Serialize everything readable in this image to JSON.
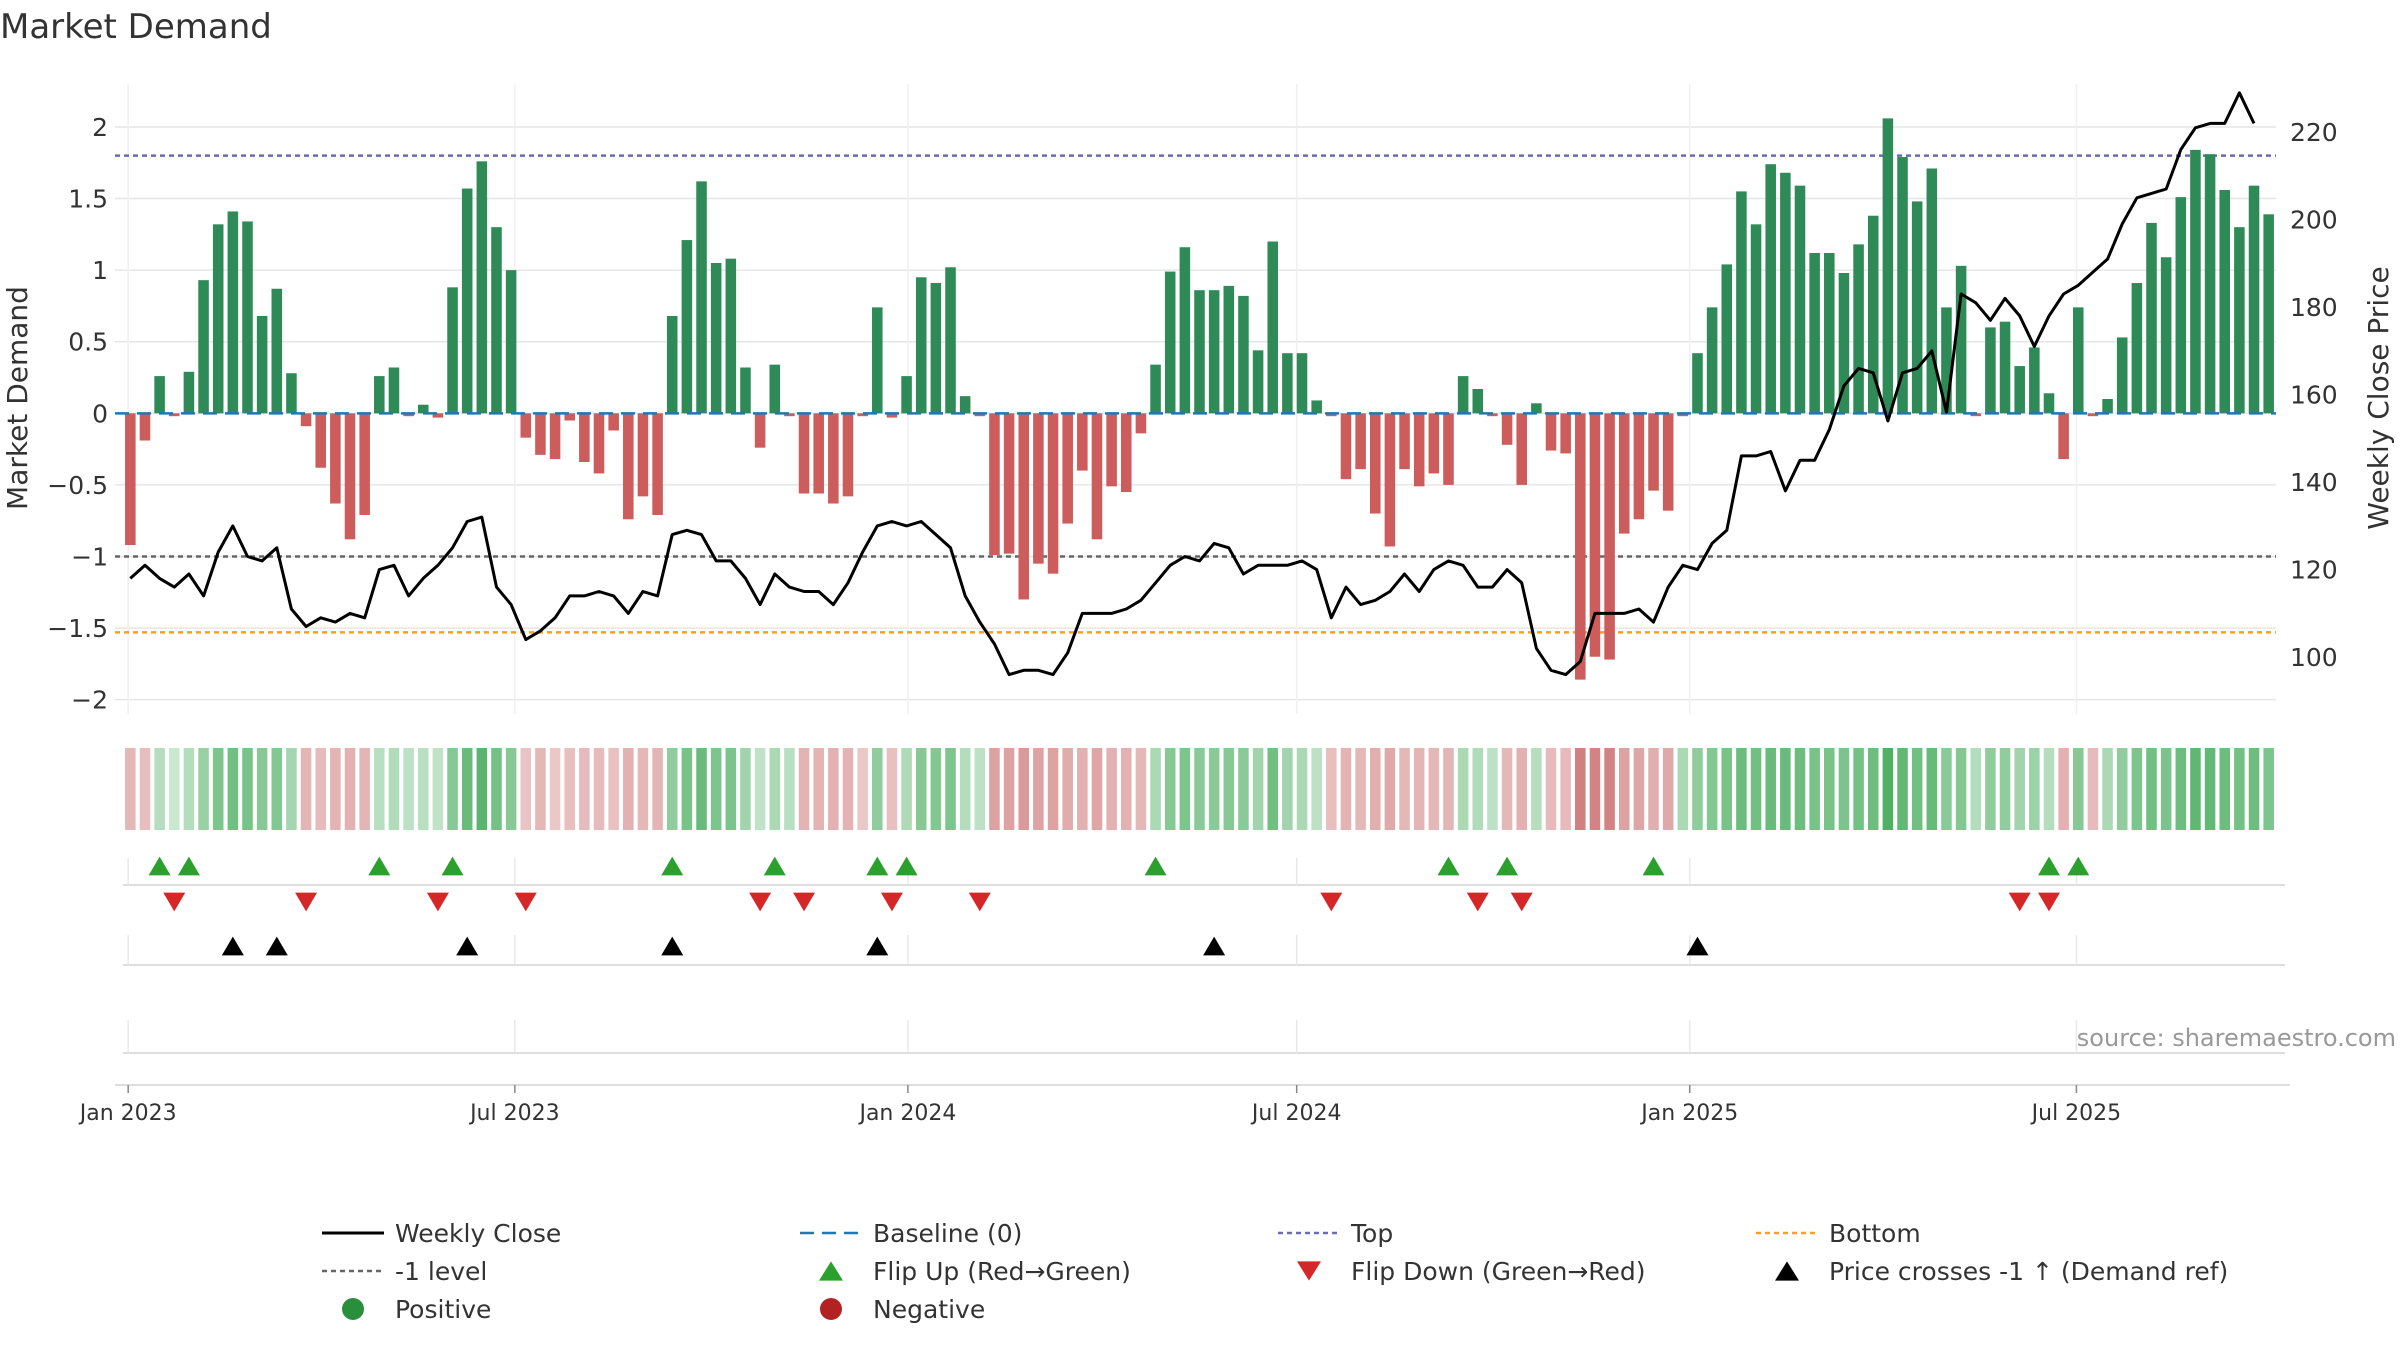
{
  "chart_data": {
    "type": "bar",
    "title": "Market Demand",
    "ylabel": "Market Demand",
    "y2label": "Weekly Close Price",
    "ylim": [
      -2.1,
      2.3
    ],
    "y2lim": [
      87,
      231
    ],
    "yticks": [
      -2,
      -1.5,
      -1,
      -0.5,
      0,
      0.5,
      1,
      1.5,
      2
    ],
    "ytick_labels": [
      "−2",
      "−1.5",
      "−1",
      "−0.5",
      "0",
      "0.5",
      "1",
      "1.5",
      "2"
    ],
    "y2ticks": [
      100,
      120,
      140,
      160,
      180,
      200,
      220
    ],
    "x_date_start": "2023-01-02",
    "x_date_end": "2025-09-29",
    "xticks": [
      {
        "label": "Jan 2023",
        "date": "2023-01-01"
      },
      {
        "label": "Jul 2023",
        "date": "2023-07-01"
      },
      {
        "label": "Jan 2024",
        "date": "2024-01-01"
      },
      {
        "label": "Jul 2024",
        "date": "2024-07-01"
      },
      {
        "label": "Jan 2025",
        "date": "2025-01-01"
      },
      {
        "label": "Jul 2025",
        "date": "2025-07-01"
      }
    ],
    "reference_lines": {
      "top": 1.8,
      "bottom": -1.53,
      "minus_one": -1,
      "baseline": 0
    },
    "colors": {
      "pos_bar": "#2e8b57",
      "neg_bar": "#cd5c5c",
      "price": "#000000",
      "baseline": "#1f77b4",
      "top": "#6b6bb0",
      "bottom": "#ff9f1c",
      "minus_one": "#666666",
      "flip_up": "#2ca02c",
      "flip_down": "#d62728",
      "cross": "#000000",
      "grid": "#e6e6e6"
    },
    "demand": [
      -0.92,
      -0.19,
      0.26,
      -0.02,
      0.29,
      0.93,
      1.32,
      1.41,
      1.34,
      0.68,
      0.87,
      0.28,
      -0.09,
      -0.38,
      -0.63,
      -0.88,
      -0.71,
      0.26,
      0.32,
      -0.02,
      0.06,
      -0.03,
      0.88,
      1.57,
      1.76,
      1.3,
      1.0,
      -0.17,
      -0.29,
      -0.32,
      -0.05,
      -0.34,
      -0.42,
      -0.12,
      -0.74,
      -0.58,
      -0.71,
      0.68,
      1.21,
      1.62,
      1.05,
      1.08,
      0.32,
      -0.24,
      0.34,
      -0.02,
      -0.56,
      -0.56,
      -0.63,
      -0.58,
      -0.02,
      0.74,
      -0.03,
      0.26,
      0.95,
      0.91,
      1.02,
      0.12,
      -0.02,
      -0.99,
      -0.98,
      -1.3,
      -1.05,
      -1.12,
      -0.77,
      -0.4,
      -0.88,
      -0.51,
      -0.55,
      -0.14,
      0.34,
      0.99,
      1.16,
      0.86,
      0.86,
      0.89,
      0.82,
      0.44,
      1.2,
      0.42,
      0.42,
      0.09,
      -0.02,
      -0.46,
      -0.39,
      -0.7,
      -0.93,
      -0.39,
      -0.51,
      -0.42,
      -0.5,
      0.26,
      0.17,
      -0.02,
      -0.22,
      -0.5,
      0.07,
      -0.26,
      -0.28,
      -1.86,
      -1.7,
      -1.72,
      -0.84,
      -0.74,
      -0.54,
      -0.68,
      -0.02,
      0.42,
      0.74,
      1.04,
      1.55,
      1.32,
      1.74,
      1.68,
      1.59,
      1.12,
      1.12,
      0.98,
      1.18,
      1.38,
      2.06,
      1.79,
      1.48,
      1.71,
      0.74,
      1.03,
      -0.02,
      0.6,
      0.64,
      0.33,
      0.46,
      0.14,
      -0.32,
      0.74,
      -0.02,
      0.1,
      0.53,
      0.91,
      1.33,
      1.09,
      1.51,
      1.84,
      1.81,
      1.56,
      1.3,
      1.59,
      1.39
    ],
    "price": [
      118,
      121,
      118,
      116,
      119,
      114,
      124,
      130,
      123,
      122,
      125,
      111,
      107,
      109,
      108,
      110,
      109,
      120,
      121,
      114,
      118,
      121,
      125,
      131,
      132,
      116,
      112,
      104,
      106,
      109,
      114,
      114,
      115,
      114,
      110,
      115,
      114,
      128,
      129,
      128,
      122,
      122,
      118,
      112,
      119,
      116,
      115,
      115,
      112,
      117,
      124,
      130,
      131,
      130,
      131,
      128,
      125,
      114,
      108,
      103,
      96,
      97,
      97,
      96,
      101,
      110,
      110,
      110,
      111,
      113,
      117,
      121,
      123,
      122,
      126,
      125,
      119,
      121,
      121,
      121,
      122,
      120,
      109,
      116,
      112,
      113,
      115,
      119,
      115,
      120,
      122,
      121,
      116,
      116,
      120,
      117,
      102,
      97,
      96,
      99,
      110,
      110,
      110,
      111,
      108,
      116,
      121,
      120,
      126,
      129,
      146,
      146,
      147,
      138,
      145,
      145,
      152,
      162,
      166,
      165,
      154,
      165,
      166,
      170,
      156,
      183,
      181,
      177,
      182,
      178,
      171,
      178,
      183,
      185,
      188,
      191,
      199,
      205,
      206,
      207,
      216,
      221,
      222,
      222,
      229,
      222
    ],
    "heat_strip": [
      -0.3,
      -0.27,
      0.24,
      0.12,
      0.25,
      0.4,
      0.55,
      0.62,
      0.58,
      0.5,
      0.52,
      0.33,
      -0.32,
      -0.28,
      -0.33,
      -0.35,
      -0.32,
      0.22,
      0.26,
      0.2,
      0.22,
      0.18,
      0.5,
      0.66,
      0.74,
      0.6,
      0.5,
      -0.22,
      -0.3,
      -0.2,
      -0.26,
      -0.28,
      -0.28,
      -0.24,
      -0.35,
      -0.3,
      -0.32,
      0.45,
      0.58,
      0.66,
      0.55,
      0.56,
      0.35,
      0.18,
      0.3,
      0.22,
      -0.33,
      -0.33,
      -0.35,
      -0.33,
      -0.2,
      0.45,
      -0.25,
      0.28,
      0.5,
      0.52,
      0.55,
      0.25,
      0.2,
      -0.45,
      -0.45,
      -0.5,
      -0.45,
      -0.45,
      -0.38,
      -0.35,
      -0.42,
      -0.35,
      -0.35,
      -0.3,
      0.3,
      0.5,
      0.55,
      0.48,
      0.48,
      0.5,
      0.48,
      0.35,
      0.62,
      0.35,
      0.3,
      0.2,
      -0.26,
      -0.33,
      -0.3,
      -0.36,
      -0.4,
      -0.3,
      -0.32,
      -0.3,
      -0.32,
      0.3,
      0.26,
      0.2,
      -0.3,
      -0.35,
      0.24,
      -0.28,
      -0.28,
      -0.68,
      -0.66,
      -0.66,
      -0.45,
      -0.42,
      -0.36,
      -0.4,
      0.3,
      0.45,
      0.52,
      0.58,
      0.65,
      0.62,
      0.66,
      0.66,
      0.64,
      0.58,
      0.58,
      0.56,
      0.6,
      0.64,
      0.8,
      0.7,
      0.62,
      0.68,
      0.48,
      0.52,
      0.25,
      0.45,
      0.45,
      0.35,
      0.38,
      0.25,
      -0.35,
      0.5,
      -0.28,
      0.3,
      0.45,
      0.55,
      0.62,
      0.56,
      0.64,
      0.72,
      0.7,
      0.64,
      0.6,
      0.64,
      0.55
    ],
    "flip_up_weeks": [
      2,
      4,
      17,
      22,
      37,
      44,
      51,
      53,
      70,
      90,
      94,
      104,
      131,
      133
    ],
    "flip_down_weeks": [
      3,
      12,
      21,
      27,
      43,
      46,
      52,
      58,
      82,
      92,
      95,
      129,
      131
    ],
    "cross_weeks": [
      7,
      10,
      23,
      37,
      51,
      74,
      107
    ],
    "legend": [
      {
        "label": "Weekly Close",
        "kind": "line"
      },
      {
        "label": "Baseline (0)",
        "kind": "baseline"
      },
      {
        "label": "Top",
        "kind": "top"
      },
      {
        "label": "Bottom",
        "kind": "bottom"
      },
      {
        "label": "-1 level",
        "kind": "minus_one"
      },
      {
        "label": "Flip Up (Red→Green)",
        "kind": "flip_up"
      },
      {
        "label": "Flip Down (Green→Red)",
        "kind": "flip_down"
      },
      {
        "label": "Price crosses -1 ↑ (Demand ref)",
        "kind": "cross"
      },
      {
        "label": "Positive",
        "kind": "positive"
      },
      {
        "label": "Negative",
        "kind": "negative"
      }
    ],
    "source": "source: sharemaestro.com"
  }
}
